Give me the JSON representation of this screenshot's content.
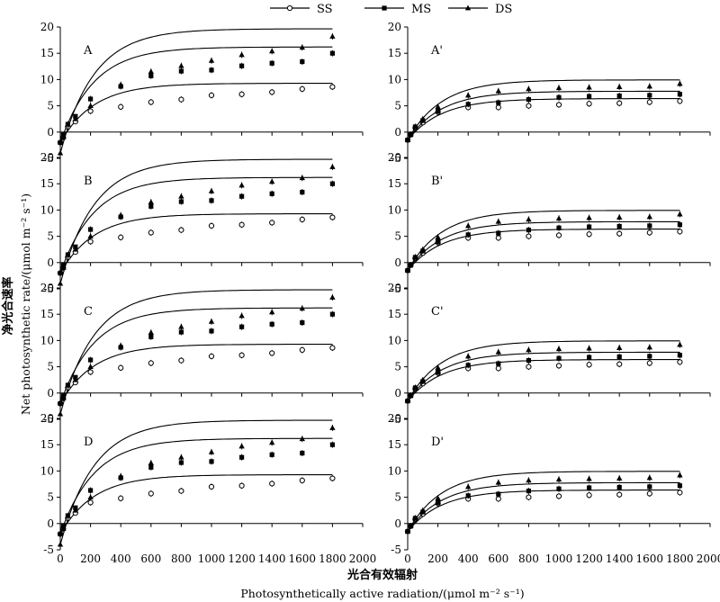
{
  "legend": [
    {
      "name": "SS",
      "marker": "open-circle"
    },
    {
      "name": "MS",
      "marker": "filled-square"
    },
    {
      "name": "DS",
      "marker": "filled-triangle"
    }
  ],
  "axis_labels": {
    "y_cn": "净光合速率",
    "y_en": "Net photosynthetic rate/(μmol m⁻² s⁻¹)",
    "x_cn": "光合有效辐射",
    "x_en": "Photosynthetically active radiation/(μmol m⁻² s⁻¹)"
  },
  "chart_data": {
    "type": "scatter",
    "x_ticks": [
      0,
      200,
      400,
      600,
      800,
      1000,
      1200,
      1400,
      1600,
      1800,
      2000
    ],
    "y_ticks": [
      -5,
      0,
      5,
      10,
      15,
      20
    ],
    "xlim": [
      0,
      2000
    ],
    "ylim": [
      -5,
      20
    ],
    "x": [
      0,
      20,
      50,
      100,
      200,
      400,
      600,
      800,
      1000,
      1200,
      1400,
      1600,
      1800
    ],
    "panels": [
      {
        "label": "A",
        "series": [
          {
            "name": "SS",
            "values": [
              -2,
              -1,
              1,
              2,
              4,
              4.8,
              5.7,
              6.2,
              7.0,
              7.2,
              7.6,
              8.2,
              8.6
            ]
          },
          {
            "name": "MS",
            "values": [
              -2,
              -0.5,
              1.5,
              3,
              6.3,
              8.7,
              10.7,
              11.6,
              11.8,
              12.6,
              13.1,
              13.4,
              15.0
            ]
          },
          {
            "name": "DS",
            "values": [
              -4,
              -1,
              1.5,
              2.5,
              5.0,
              9.0,
              11.5,
              12.6,
              13.6,
              14.7,
              15.4,
              16.1,
              18.2
            ]
          }
        ]
      },
      {
        "label": "A'",
        "series": [
          {
            "name": "SS",
            "values": [
              -1.5,
              -0.5,
              0.8,
              1.8,
              3.8,
              4.7,
              4.7,
              5.0,
              5.2,
              5.4,
              5.5,
              5.7,
              5.9
            ]
          },
          {
            "name": "MS",
            "values": [
              -1.5,
              -0.5,
              1,
              2.2,
              4.0,
              5.3,
              5.6,
              6.2,
              6.6,
              6.8,
              6.9,
              7.0,
              7.2
            ]
          },
          {
            "name": "DS",
            "values": [
              -1.5,
              -0.4,
              1.1,
              2.5,
              4.8,
              7.0,
              7.8,
              8.2,
              8.4,
              8.5,
              8.6,
              8.7,
              9.2
            ]
          }
        ]
      },
      {
        "label": "B",
        "series": [
          {
            "name": "SS",
            "values": [
              -2,
              -1,
              1,
              2,
              4,
              4.8,
              5.7,
              6.2,
              7.0,
              7.2,
              7.6,
              8.2,
              8.6
            ]
          },
          {
            "name": "MS",
            "values": [
              -2,
              -0.5,
              1.5,
              3,
              6.3,
              8.7,
              10.7,
              11.6,
              11.8,
              12.6,
              13.1,
              13.4,
              15.0
            ]
          },
          {
            "name": "DS",
            "values": [
              -4,
              -1,
              1.5,
              2.5,
              5.0,
              9.0,
              11.5,
              12.6,
              13.6,
              14.7,
              15.4,
              16.1,
              18.2
            ]
          }
        ]
      },
      {
        "label": "B'",
        "series": [
          {
            "name": "SS",
            "values": [
              -1.5,
              -0.5,
              0.8,
              1.8,
              3.8,
              4.7,
              4.7,
              5.0,
              5.2,
              5.4,
              5.5,
              5.7,
              5.9
            ]
          },
          {
            "name": "MS",
            "values": [
              -1.5,
              -0.5,
              1,
              2.2,
              4.0,
              5.3,
              5.6,
              6.2,
              6.6,
              6.8,
              6.9,
              7.0,
              7.2
            ]
          },
          {
            "name": "DS",
            "values": [
              -1.5,
              -0.4,
              1.1,
              2.5,
              4.8,
              7.0,
              7.8,
              8.2,
              8.4,
              8.5,
              8.6,
              8.7,
              9.2
            ]
          }
        ]
      },
      {
        "label": "C",
        "series": [
          {
            "name": "SS",
            "values": [
              -2,
              -1,
              1,
              2,
              4,
              4.8,
              5.7,
              6.2,
              7.0,
              7.2,
              7.6,
              8.2,
              8.6
            ]
          },
          {
            "name": "MS",
            "values": [
              -2,
              -0.5,
              1.5,
              3,
              6.3,
              8.7,
              10.7,
              11.6,
              11.8,
              12.6,
              13.1,
              13.4,
              15.0
            ]
          },
          {
            "name": "DS",
            "values": [
              -4,
              -1,
              1.5,
              2.5,
              5.0,
              9.0,
              11.5,
              12.6,
              13.6,
              14.7,
              15.4,
              16.1,
              18.2
            ]
          }
        ]
      },
      {
        "label": "C'",
        "series": [
          {
            "name": "SS",
            "values": [
              -1.5,
              -0.5,
              0.8,
              1.8,
              3.8,
              4.7,
              4.7,
              5.0,
              5.2,
              5.4,
              5.5,
              5.7,
              5.9
            ]
          },
          {
            "name": "MS",
            "values": [
              -1.5,
              -0.5,
              1,
              2.2,
              4.0,
              5.3,
              5.6,
              6.2,
              6.6,
              6.8,
              6.9,
              7.0,
              7.2
            ]
          },
          {
            "name": "DS",
            "values": [
              -1.5,
              -0.4,
              1.1,
              2.5,
              4.8,
              7.0,
              7.8,
              8.2,
              8.4,
              8.5,
              8.6,
              8.7,
              9.2
            ]
          }
        ]
      },
      {
        "label": "D",
        "series": [
          {
            "name": "SS",
            "values": [
              -2,
              -1,
              1,
              2,
              4,
              4.8,
              5.7,
              6.2,
              7.0,
              7.2,
              7.6,
              8.2,
              8.6
            ]
          },
          {
            "name": "MS",
            "values": [
              -2,
              -0.5,
              1.5,
              3,
              6.3,
              8.7,
              10.7,
              11.6,
              11.8,
              12.6,
              13.1,
              13.4,
              15.0
            ]
          },
          {
            "name": "DS",
            "values": [
              -4,
              -1,
              1.5,
              2.5,
              5.0,
              9.0,
              11.5,
              12.6,
              13.6,
              14.7,
              15.4,
              16.1,
              18.2
            ]
          }
        ]
      },
      {
        "label": "D'",
        "series": [
          {
            "name": "SS",
            "values": [
              -1.5,
              -0.5,
              0.8,
              1.8,
              3.8,
              4.7,
              4.7,
              5.0,
              5.2,
              5.4,
              5.5,
              5.7,
              5.9
            ]
          },
          {
            "name": "MS",
            "values": [
              -1.5,
              -0.5,
              1,
              2.2,
              4.0,
              5.3,
              5.6,
              6.2,
              6.6,
              6.8,
              6.9,
              7.0,
              7.2
            ]
          },
          {
            "name": "DS",
            "values": [
              -1.5,
              -0.4,
              1.1,
              2.5,
              4.8,
              7.0,
              7.8,
              8.2,
              8.4,
              8.5,
              8.6,
              8.7,
              9.2
            ]
          }
        ]
      }
    ]
  }
}
